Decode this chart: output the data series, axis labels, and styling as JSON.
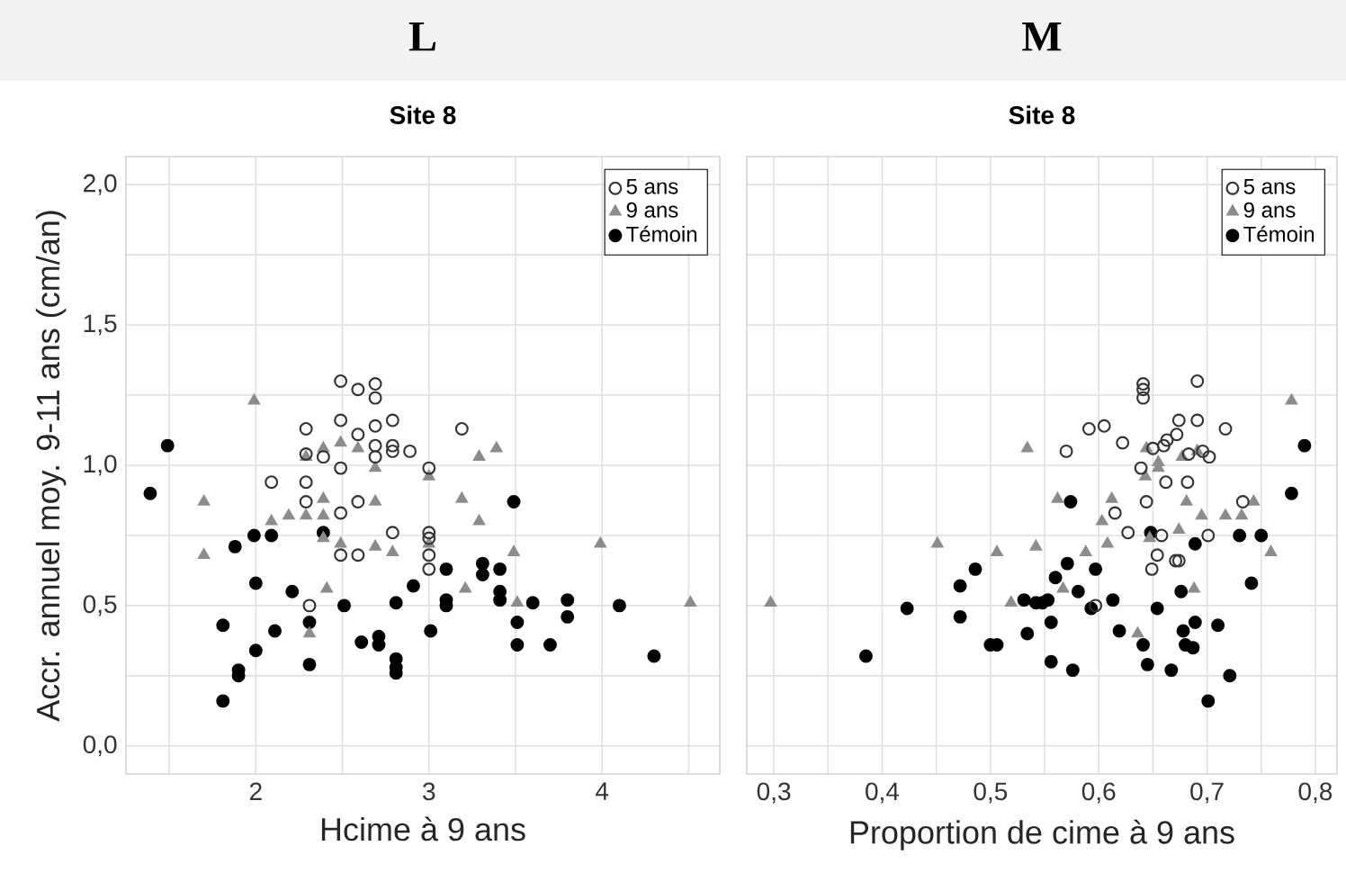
{
  "chart_data": [
    {
      "type": "scatter",
      "title": "L",
      "subtitle": "Site 8",
      "xlabel": "Hcime à 9 ans",
      "ylabel": "Accr. annuel moy. 9-11 ans (cm/an)",
      "xlim": [
        1.25,
        4.68
      ],
      "ylim": [
        -0.1,
        2.1
      ],
      "xticks": [
        {
          "value": 1.5,
          "label": null
        },
        2,
        {
          "value": 2.5,
          "label": null
        },
        3,
        {
          "value": 3.5,
          "label": null
        },
        4,
        {
          "value": 4.5,
          "label": null
        }
      ],
      "yticks": [
        {
          "value": 0,
          "label": "0,0"
        },
        {
          "value": 0.25,
          "label": null
        },
        {
          "value": 0.5,
          "label": "0,5"
        },
        {
          "value": 0.75,
          "label": null
        },
        {
          "value": 1,
          "label": "1,0"
        },
        {
          "value": 1.25,
          "label": null
        },
        {
          "value": 1.5,
          "label": "1,5"
        },
        {
          "value": 1.75,
          "label": null
        },
        {
          "value": 2,
          "label": "2,0"
        }
      ],
      "grid": true,
      "legend": "top right",
      "series": [
        {
          "name": "5 ans",
          "color": "#333333",
          "marker": "circle",
          "x": [
            2.49,
            2.59,
            2.69,
            2.69,
            2.29,
            2.49,
            2.69,
            2.79,
            3.19,
            2.59,
            2.29,
            2.39,
            2.69,
            2.79,
            2.79,
            2.89,
            2.69,
            2.49,
            3.0,
            2.09,
            2.29,
            2.29,
            2.59,
            2.49,
            2.79,
            3.0,
            3.0,
            2.49,
            2.59,
            3.0,
            3.0,
            2.31
          ],
          "values": [
            1.3,
            1.27,
            1.29,
            1.24,
            1.13,
            1.16,
            1.14,
            1.16,
            1.13,
            1.11,
            1.04,
            1.03,
            1.07,
            1.07,
            1.05,
            1.05,
            1.03,
            0.99,
            0.99,
            0.94,
            0.94,
            0.87,
            0.87,
            0.83,
            0.76,
            0.76,
            0.74,
            0.68,
            0.68,
            0.68,
            0.63,
            0.5
          ]
        },
        {
          "name": "9 ans",
          "color": "#8c8c8c",
          "marker": "triangle",
          "x": [
            1.99,
            2.29,
            2.39,
            2.49,
            2.59,
            2.69,
            3.0,
            3.29,
            3.39,
            1.7,
            2.39,
            2.69,
            3.19,
            2.09,
            2.19,
            2.29,
            2.39,
            3.29,
            2.39,
            2.49,
            2.69,
            2.79,
            3.0,
            3.49,
            3.99,
            1.7,
            2.41,
            2.31,
            3.21,
            3.51,
            4.51
          ],
          "values": [
            1.23,
            1.03,
            1.06,
            1.08,
            1.06,
            0.99,
            0.96,
            1.03,
            1.06,
            0.87,
            0.88,
            0.87,
            0.88,
            0.8,
            0.82,
            0.82,
            0.82,
            0.8,
            0.74,
            0.72,
            0.71,
            0.69,
            0.72,
            0.69,
            0.72,
            0.68,
            0.56,
            0.4,
            0.56,
            0.51,
            0.51
          ]
        },
        {
          "name": "Témoin",
          "color": "#000000",
          "x": [
            1.49,
            1.39,
            3.49,
            1.99,
            2.09,
            2.39,
            1.88,
            2.0,
            1.81,
            2.11,
            2.21,
            2.0,
            1.9,
            1.9,
            1.81,
            2.31,
            2.31,
            2.51,
            2.61,
            2.71,
            2.71,
            2.81,
            2.81,
            2.81,
            2.81,
            2.91,
            3.01,
            3.1,
            3.1,
            3.1,
            3.31,
            3.31,
            3.41,
            3.41,
            3.41,
            3.51,
            3.51,
            3.6,
            3.7,
            3.8,
            3.8,
            4.1,
            4.3
          ],
          "values": [
            1.07,
            0.9,
            0.87,
            0.75,
            0.75,
            0.76,
            0.71,
            0.58,
            0.43,
            0.41,
            0.55,
            0.34,
            0.27,
            0.25,
            0.16,
            0.44,
            0.29,
            0.5,
            0.37,
            0.39,
            0.36,
            0.51,
            0.31,
            0.28,
            0.26,
            0.57,
            0.41,
            0.63,
            0.52,
            0.5,
            0.65,
            0.61,
            0.63,
            0.55,
            0.52,
            0.44,
            0.36,
            0.51,
            0.36,
            0.52,
            0.46,
            0.5,
            0.32
          ]
        }
      ]
    },
    {
      "type": "scatter",
      "title": "M",
      "subtitle": "Site 8",
      "xlabel": "Proportion de cime à 9 ans",
      "xlim": [
        0.275,
        0.82
      ],
      "ylim": [
        -0.1,
        2.1
      ],
      "xticks": [
        {
          "value": 0.3,
          "label": "0,3"
        },
        {
          "value": 0.35,
          "label": null
        },
        {
          "value": 0.4,
          "label": "0,4"
        },
        {
          "value": 0.45,
          "label": null
        },
        {
          "value": 0.5,
          "label": "0,5"
        },
        {
          "value": 0.55,
          "label": null
        },
        {
          "value": 0.6,
          "label": "0,6"
        },
        {
          "value": 0.65,
          "label": null
        },
        {
          "value": 0.7,
          "label": "0,7"
        },
        {
          "value": 0.75,
          "label": null
        },
        {
          "value": 0.8,
          "label": "0,8"
        }
      ],
      "yticks": [
        0,
        {
          "value": 0.25,
          "label": null
        },
        0.5,
        {
          "value": 0.75,
          "label": null
        },
        1,
        {
          "value": 1.25,
          "label": null
        },
        1.5,
        {
          "value": 1.75,
          "label": null
        },
        2
      ],
      "tick_labels": "x",
      "grid": true,
      "legend": "top right",
      "series": [
        {
          "name": "5 ans",
          "color": "#333333",
          "marker": "circle",
          "x": [
            0.691,
            0.641,
            0.641,
            0.641,
            0.674,
            0.691,
            0.591,
            0.605,
            0.717,
            0.622,
            0.672,
            0.663,
            0.66,
            0.65,
            0.57,
            0.683,
            0.696,
            0.702,
            0.639,
            0.662,
            0.682,
            0.644,
            0.733,
            0.615,
            0.627,
            0.658,
            0.701,
            0.649,
            0.654,
            0.671,
            0.674,
            0.597
          ],
          "values": [
            1.3,
            1.29,
            1.27,
            1.24,
            1.16,
            1.16,
            1.13,
            1.14,
            1.13,
            1.08,
            1.11,
            1.09,
            1.07,
            1.06,
            1.05,
            1.04,
            1.05,
            1.03,
            0.99,
            0.94,
            0.94,
            0.87,
            0.87,
            0.83,
            0.76,
            0.75,
            0.75,
            0.63,
            0.68,
            0.66,
            0.66,
            0.5
          ]
        },
        {
          "name": "9 ans",
          "color": "#8c8c8c",
          "marker": "triangle",
          "x": [
            0.778,
            0.534,
            0.644,
            0.655,
            0.655,
            0.677,
            0.691,
            0.643,
            0.562,
            0.612,
            0.681,
            0.743,
            0.603,
            0.695,
            0.717,
            0.732,
            0.674,
            0.647,
            0.608,
            0.451,
            0.506,
            0.542,
            0.588,
            0.759,
            0.297,
            0.519,
            0.567,
            0.636,
            0.688
          ],
          "values": [
            1.23,
            1.06,
            1.06,
            1.01,
            0.99,
            1.03,
            1.05,
            0.96,
            0.88,
            0.88,
            0.87,
            0.87,
            0.8,
            0.82,
            0.82,
            0.82,
            0.77,
            0.74,
            0.72,
            0.72,
            0.69,
            0.71,
            0.69,
            0.69,
            0.51,
            0.51,
            0.56,
            0.4,
            0.56
          ]
        },
        {
          "name": "Témoin",
          "color": "#000000",
          "x": [
            0.79,
            0.778,
            0.574,
            0.648,
            0.689,
            0.73,
            0.75,
            0.385,
            0.423,
            0.472,
            0.472,
            0.486,
            0.5,
            0.506,
            0.531,
            0.534,
            0.542,
            0.548,
            0.553,
            0.556,
            0.556,
            0.56,
            0.571,
            0.576,
            0.581,
            0.593,
            0.597,
            0.613,
            0.619,
            0.641,
            0.645,
            0.654,
            0.667,
            0.676,
            0.678,
            0.68,
            0.687,
            0.689,
            0.701,
            0.71,
            0.721,
            0.741
          ],
          "values": [
            1.07,
            0.9,
            0.87,
            0.76,
            0.72,
            0.75,
            0.75,
            0.32,
            0.49,
            0.57,
            0.46,
            0.63,
            0.36,
            0.36,
            0.52,
            0.4,
            0.51,
            0.51,
            0.52,
            0.44,
            0.3,
            0.6,
            0.65,
            0.27,
            0.55,
            0.49,
            0.63,
            0.52,
            0.41,
            0.36,
            0.29,
            0.49,
            0.27,
            0.55,
            0.41,
            0.36,
            0.35,
            0.44,
            0.16,
            0.43,
            0.25,
            0.58
          ]
        }
      ]
    }
  ]
}
